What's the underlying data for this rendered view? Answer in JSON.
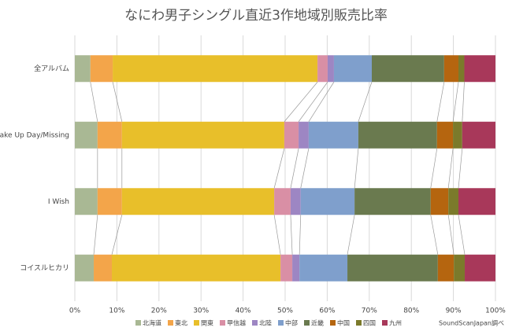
{
  "chart_data": {
    "type": "stacked_bar_100_horizontal",
    "title": "なにわ男子シングル直近3作地域別販売比率",
    "source": "SoundScanJapan調べ",
    "categories": [
      "全アルバム",
      "Make Up Day/Missing",
      "I Wish",
      "コイスルヒカリ"
    ],
    "series": [
      {
        "name": "北海道",
        "color": "#a9b894",
        "values": [
          3.7,
          5.4,
          5.4,
          4.5
        ]
      },
      {
        "name": "東北",
        "color": "#f3a54a",
        "values": [
          5.3,
          5.8,
          5.8,
          4.3
        ]
      },
      {
        "name": "関東",
        "color": "#e8bf2a",
        "values": [
          48.7,
          38.6,
          36.2,
          40.1
        ]
      },
      {
        "name": "甲信越",
        "color": "#d98fa5",
        "values": [
          2.4,
          3.4,
          3.9,
          2.8
        ]
      },
      {
        "name": "北陸",
        "color": "#9d86c3",
        "values": [
          1.5,
          2.4,
          2.4,
          1.7
        ]
      },
      {
        "name": "中部",
        "color": "#7f9fcc",
        "values": [
          9.0,
          11.8,
          12.8,
          11.4
        ]
      },
      {
        "name": "近畿",
        "color": "#6a7a4f",
        "values": [
          17.2,
          18.7,
          18.1,
          21.5
        ]
      },
      {
        "name": "中国",
        "color": "#b5650f",
        "values": [
          3.4,
          3.8,
          4.2,
          3.8
        ]
      },
      {
        "name": "四国",
        "color": "#7b7a2b",
        "values": [
          1.4,
          2.2,
          2.4,
          2.6
        ]
      },
      {
        "name": "九州",
        "color": "#a8385a",
        "values": [
          7.4,
          7.9,
          8.8,
          7.3
        ]
      }
    ],
    "xlim": [
      0,
      100
    ],
    "xticks": [
      {
        "value": 0,
        "label": "0%"
      },
      {
        "value": 10,
        "label": "10%"
      },
      {
        "value": 20,
        "label": "20%"
      },
      {
        "value": 30,
        "label": "30%"
      },
      {
        "value": 40,
        "label": "40%"
      },
      {
        "value": 50,
        "label": "50%"
      },
      {
        "value": 60,
        "label": "60%"
      },
      {
        "value": 70,
        "label": "70%"
      },
      {
        "value": 80,
        "label": "80%"
      },
      {
        "value": 90,
        "label": "90%"
      },
      {
        "value": 100,
        "label": "100%"
      }
    ],
    "grid": true
  }
}
